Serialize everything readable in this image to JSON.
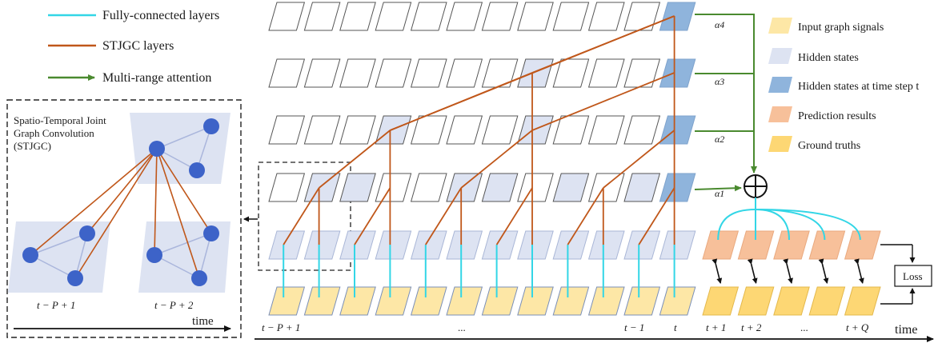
{
  "legend_left": {
    "fc": "Fully-connected layers",
    "stjgc": "STJGC layers",
    "attention": "Multi-range attention"
  },
  "legend_right": {
    "input": "Input graph signals",
    "hidden": "Hidden states",
    "hidden_t": "Hidden states at time step t",
    "prediction": "Prediction results",
    "ground": "Ground truths"
  },
  "inset": {
    "title_line1": "Spatio-Temporal Joint",
    "title_line2": "Graph Convolution",
    "title_line3": "(STJGC)",
    "label_left": "t − P + 1",
    "label_right": "t − P + 2",
    "time_label": "time"
  },
  "alphas": [
    "α4",
    "α3",
    "α2",
    "α1"
  ],
  "time_labels": {
    "first": "t − P + 1",
    "dots": "...",
    "tm1": "t − 1",
    "t": "t",
    "tp1": "t + 1",
    "tp2": "t + 2",
    "dots2": "...",
    "tpq": "t + Q",
    "time": "time"
  },
  "loss_label": "Loss",
  "colors": {
    "fc": "#33d6e6",
    "stjgc": "#c0571a",
    "attention": "#4a8a2f",
    "input": "#fde7a6",
    "hidden": "#dde3f2",
    "hidden_t": "#8fb4dc",
    "prediction": "#f7c09a",
    "ground": "#fdd774"
  }
}
